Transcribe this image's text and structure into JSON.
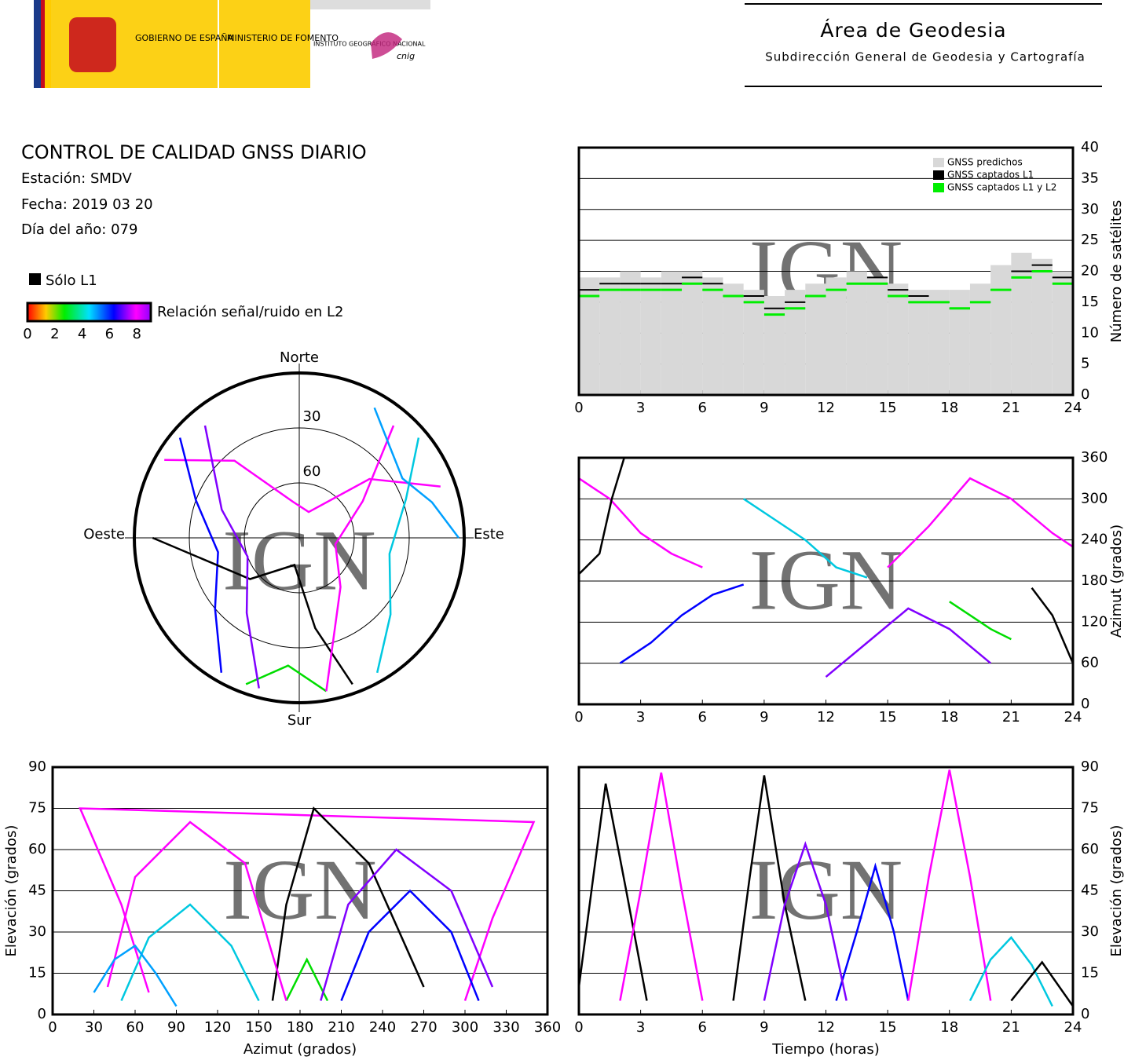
{
  "header": {
    "gobierno": "GOBIERNO DE ESPAÑA",
    "ministerio": "MINISTERIO DE FOMENTO",
    "instituto": "INSTITUTO GEOGRÁFICO NACIONAL",
    "cnig": "cnig",
    "area": "Área de Geodesia",
    "subdireccion": "Subdirección General de Geodesia y Cartografía"
  },
  "info": {
    "title": "CONTROL DE CALIDAD GNSS DIARIO",
    "station": "Estación: SMDV",
    "date": "Fecha: 2019 03 20",
    "doy": "Día del año: 079"
  },
  "legend": {
    "solo_l1": "Sólo L1",
    "snr_label": "Relación señal/ruido en L2",
    "snr_ticks": [
      0,
      2,
      4,
      6,
      8
    ]
  },
  "chart_data": [
    {
      "type": "step",
      "watermark": "IGN",
      "y_label": "Número de satélites",
      "x": [
        0,
        1,
        2,
        3,
        4,
        5,
        6,
        7,
        8,
        9,
        10,
        11,
        12,
        13,
        14,
        15,
        16,
        17,
        18,
        19,
        20,
        21,
        22,
        23
      ],
      "series": [
        {
          "name": "GNSS predichos",
          "color": "#d8d8d8",
          "values": [
            19,
            19,
            20,
            19,
            20,
            20,
            19,
            18,
            17,
            16,
            17,
            18,
            19,
            20,
            19,
            18,
            17,
            17,
            17,
            18,
            21,
            23,
            22,
            20
          ]
        },
        {
          "name": "GNSS captados L1",
          "color": "#000000",
          "values": [
            17,
            18,
            18,
            18,
            18,
            19,
            18,
            16,
            16,
            14,
            15,
            16,
            17,
            18,
            19,
            17,
            16,
            15,
            14,
            15,
            17,
            20,
            21,
            19
          ]
        },
        {
          "name": "GNSS captados L1 y L2",
          "color": "#00ee00",
          "values": [
            16,
            17,
            17,
            17,
            17,
            18,
            17,
            16,
            15,
            13,
            14,
            16,
            17,
            18,
            18,
            16,
            15,
            15,
            14,
            15,
            17,
            19,
            20,
            18
          ]
        }
      ],
      "xlim": [
        0,
        24
      ],
      "xticks": [
        0,
        3,
        6,
        9,
        12,
        15,
        18,
        21,
        24
      ],
      "ylim": [
        0,
        40
      ],
      "yticks": [
        0,
        5,
        10,
        15,
        20,
        25,
        30,
        35,
        40
      ],
      "grid": true
    },
    {
      "type": "polar",
      "watermark": "IGN",
      "north": "Norte",
      "south": "Sur",
      "east": "Este",
      "west": "Oeste",
      "rings": [
        30,
        60
      ],
      "series": [
        {
          "color": "#ff00ff",
          "az": [
            300,
            320,
            350,
            20,
            50,
            70
          ],
          "el": [
            5,
            35,
            70,
            75,
            40,
            8
          ]
        },
        {
          "color": "#0000ff",
          "az": [
            210,
            230,
            260,
            290,
            310
          ],
          "el": [
            5,
            30,
            45,
            30,
            5
          ]
        },
        {
          "color": "#00c8e0",
          "az": [
            150,
            130,
            100,
            70,
            50
          ],
          "el": [
            5,
            25,
            40,
            28,
            5
          ]
        },
        {
          "color": "#00dd00",
          "az": [
            200,
            185,
            170
          ],
          "el": [
            5,
            20,
            5
          ]
        },
        {
          "color": "#000000",
          "az": [
            160,
            170,
            190,
            230,
            270
          ],
          "el": [
            5,
            40,
            75,
            55,
            10
          ]
        },
        {
          "color": "#ff00ff",
          "az": [
            40,
            60,
            100,
            140,
            170
          ],
          "el": [
            10,
            50,
            70,
            55,
            5
          ]
        },
        {
          "color": "#8000ff",
          "az": [
            320,
            290,
            250,
            215,
            195
          ],
          "el": [
            10,
            45,
            60,
            40,
            5
          ]
        },
        {
          "color": "#00a0ff",
          "az": [
            30,
            45,
            60,
            75,
            90
          ],
          "el": [
            8,
            20,
            25,
            15,
            3
          ]
        }
      ]
    },
    {
      "type": "track",
      "watermark": "IGN",
      "y_label": "Azimut (grados)",
      "series": [
        {
          "color": "#ff00ff",
          "x": [
            0,
            1.5,
            3,
            4.5,
            6
          ],
          "values": [
            330,
            300,
            250,
            220,
            200
          ]
        },
        {
          "color": "#0000ff",
          "x": [
            2,
            3.5,
            5,
            6.5,
            8
          ],
          "values": [
            60,
            90,
            130,
            160,
            175
          ]
        },
        {
          "color": "#00c8e0",
          "x": [
            8,
            9.5,
            11,
            12.5,
            14
          ],
          "values": [
            300,
            270,
            240,
            200,
            185
          ]
        },
        {
          "color": "#000000",
          "x": [
            0,
            1,
            1.6,
            2.2
          ],
          "values": [
            190,
            220,
            300,
            360
          ]
        },
        {
          "color": "#8000ff",
          "x": [
            12,
            14,
            16,
            18,
            20
          ],
          "values": [
            40,
            90,
            140,
            110,
            60
          ]
        },
        {
          "color": "#ff00ff",
          "x": [
            15,
            17,
            19,
            21,
            23,
            24
          ],
          "values": [
            200,
            260,
            330,
            300,
            250,
            230
          ]
        },
        {
          "color": "#00dd00",
          "x": [
            18,
            19,
            20,
            21
          ],
          "values": [
            150,
            130,
            110,
            95
          ]
        },
        {
          "color": "#000000",
          "x": [
            22,
            23,
            24
          ],
          "values": [
            170,
            130,
            60
          ]
        }
      ],
      "xlim": [
        0,
        24
      ],
      "xticks": [
        0,
        3,
        6,
        9,
        12,
        15,
        18,
        21,
        24
      ],
      "ylim": [
        0,
        360
      ],
      "yticks": [
        0,
        60,
        120,
        180,
        240,
        300,
        360
      ],
      "grid": true
    },
    {
      "type": "track",
      "watermark": "IGN",
      "x_label": "Azimut (grados)",
      "y_label": "Elevación (grados)",
      "series": [
        {
          "color": "#ff00ff",
          "x": [
            300,
            320,
            350,
            20,
            50,
            70
          ],
          "values": [
            5,
            35,
            70,
            75,
            40,
            8
          ]
        },
        {
          "color": "#0000ff",
          "x": [
            210,
            230,
            260,
            290,
            310
          ],
          "values": [
            5,
            30,
            45,
            30,
            5
          ]
        },
        {
          "color": "#00c8e0",
          "x": [
            150,
            130,
            100,
            70,
            50
          ],
          "values": [
            5,
            25,
            40,
            28,
            5
          ]
        },
        {
          "color": "#00dd00",
          "x": [
            200,
            185,
            170
          ],
          "values": [
            5,
            20,
            5
          ]
        },
        {
          "color": "#000000",
          "x": [
            160,
            170,
            190,
            230,
            270
          ],
          "values": [
            5,
            40,
            75,
            55,
            10
          ]
        },
        {
          "color": "#ff00ff",
          "x": [
            40,
            60,
            100,
            140,
            170
          ],
          "values": [
            10,
            50,
            70,
            55,
            5
          ]
        },
        {
          "color": "#8000ff",
          "x": [
            320,
            290,
            250,
            215,
            195
          ],
          "values": [
            10,
            45,
            60,
            40,
            5
          ]
        },
        {
          "color": "#00a0ff",
          "x": [
            30,
            45,
            60,
            75,
            90
          ],
          "values": [
            8,
            20,
            25,
            15,
            3
          ]
        }
      ],
      "xlim": [
        0,
        360
      ],
      "xticks": [
        0,
        30,
        60,
        90,
        120,
        150,
        180,
        210,
        240,
        270,
        300,
        330,
        360
      ],
      "ylim": [
        0,
        90
      ],
      "yticks": [
        0,
        15,
        30,
        45,
        60,
        75,
        90
      ],
      "grid": true
    },
    {
      "type": "track",
      "watermark": "IGN",
      "x_label": "Tiempo (horas)",
      "y_label": "Elevación (grados)",
      "series": [
        {
          "color": "#000000",
          "x": [
            0,
            0.7,
            1.3,
            2.3,
            3.3
          ],
          "values": [
            10,
            50,
            84,
            45,
            5
          ]
        },
        {
          "color": "#ff00ff",
          "x": [
            2,
            3,
            4,
            5,
            6
          ],
          "values": [
            5,
            45,
            88,
            45,
            5
          ]
        },
        {
          "color": "#000000",
          "x": [
            7.5,
            8.3,
            9,
            10,
            11
          ],
          "values": [
            5,
            50,
            87,
            40,
            5
          ]
        },
        {
          "color": "#0000ff",
          "x": [
            12.5,
            13.5,
            14.4,
            15.3,
            16
          ],
          "values": [
            5,
            30,
            54,
            30,
            5
          ]
        },
        {
          "color": "#ff00ff",
          "x": [
            16,
            17,
            18,
            19,
            20
          ],
          "values": [
            5,
            50,
            89,
            50,
            5
          ]
        },
        {
          "color": "#00c8e0",
          "x": [
            19,
            20,
            21,
            22,
            23
          ],
          "values": [
            5,
            20,
            28,
            18,
            3
          ]
        },
        {
          "color": "#8000ff",
          "x": [
            9,
            10,
            11,
            12,
            13
          ],
          "values": [
            5,
            40,
            62,
            40,
            5
          ]
        },
        {
          "color": "#000000",
          "x": [
            21,
            22.5,
            24
          ],
          "values": [
            5,
            19,
            3
          ]
        }
      ],
      "xlim": [
        0,
        24
      ],
      "xticks": [
        0,
        3,
        6,
        9,
        12,
        15,
        18,
        21,
        24
      ],
      "ylim": [
        0,
        90
      ],
      "yticks": [
        0,
        15,
        30,
        45,
        60,
        75,
        90
      ],
      "grid": true
    }
  ]
}
